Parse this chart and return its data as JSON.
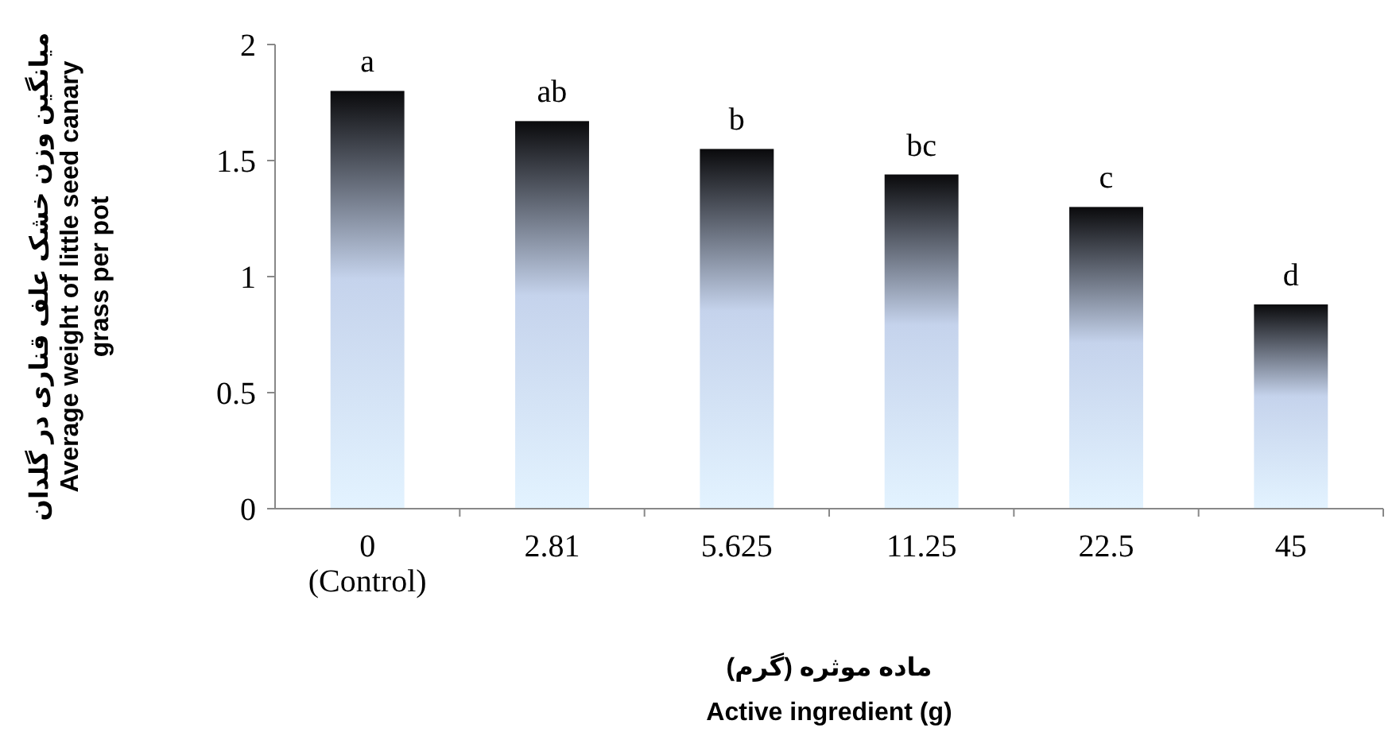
{
  "chart_data": {
    "type": "bar",
    "xlabel": "ماده موثره (گرم)\nActive ingredient (g)",
    "ylabel": "میانگین وزن خشک علف قناری در گلدان\nAverage weight of little seed canary\ngrass per pot",
    "categories": [
      "0\n(Control)",
      "2.81",
      "5.625",
      "11.25",
      "22.5",
      "45"
    ],
    "values": [
      1.8,
      1.67,
      1.55,
      1.44,
      1.3,
      0.88
    ],
    "color": "#c5d3ec",
    "ylim": [
      0,
      2
    ],
    "yticks": [
      0,
      0.5,
      1,
      1.5,
      2
    ],
    "grid": false,
    "annotations": [
      {
        "text": "a",
        "x": "0\n(Control)",
        "y": 1.8
      },
      {
        "text": "ab",
        "x": "2.81",
        "y": 1.67
      },
      {
        "text": "b",
        "x": "5.625",
        "y": 1.55
      },
      {
        "text": "bc",
        "x": "11.25",
        "y": 1.44
      },
      {
        "text": "c",
        "x": "22.5",
        "y": 1.3
      },
      {
        "text": "d",
        "x": "45",
        "y": 0.88
      }
    ]
  }
}
